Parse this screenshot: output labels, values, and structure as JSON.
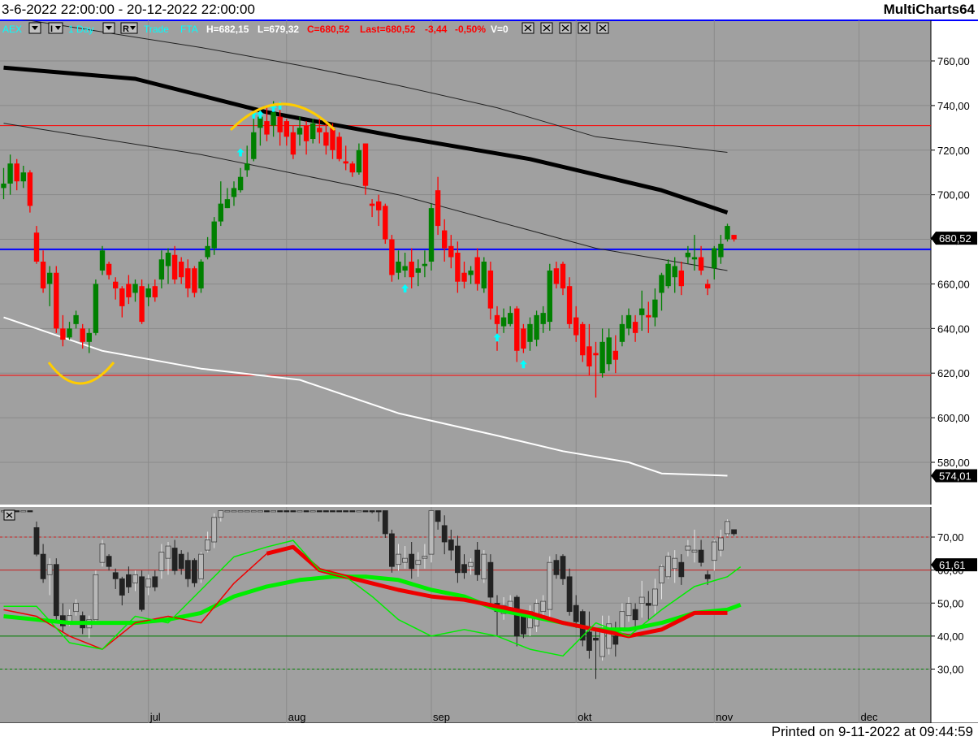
{
  "header": {
    "range": "3-6-2022 22:00:00 - 20-12-2022 22:00:00",
    "app": "MultiCharts64"
  },
  "toolbar": {
    "symbol": "AEX",
    "interval": "1 Day",
    "mode_btn": "R",
    "i_btn": "I",
    "trade": "Trade",
    "fta": "FTA",
    "high": "H=682,15",
    "low": "L=679,32",
    "close": "C=680,52",
    "last": "Last=680,52",
    "change": "-3,44",
    "pct": "-0,50%",
    "volume": "V=0"
  },
  "footer": {
    "printed": "Printed on 9-11-2022 at 09:44:59"
  },
  "colors": {
    "bg": "#a0a0a0",
    "up": "#008000",
    "down": "#ff0000",
    "blue": "#0000ff",
    "marker": "#00ffff",
    "annot": "#ffcc00"
  },
  "chart_data": [
    {
      "type": "candlestick",
      "yticks": [
        580,
        600,
        620,
        640,
        660,
        680,
        700,
        720,
        740,
        760
      ],
      "ytick_labels": [
        "580,00",
        "600,00",
        "620,00",
        "640,00",
        "660,00",
        "680,00",
        "700,00",
        "720,00",
        "740,00",
        "760,00"
      ],
      "ylim": [
        570,
        789
      ],
      "price_label": "680,52",
      "ma_label": "574,01",
      "hlines": [
        {
          "value": 731,
          "color": "#ff0000"
        },
        {
          "value": 675.5,
          "color": "#0000ff"
        },
        {
          "value": 619,
          "color": "#ff0000"
        }
      ],
      "candles": [
        [
          703,
          712,
          698,
          705
        ],
        [
          705,
          718,
          700,
          714
        ],
        [
          714,
          716,
          702,
          706
        ],
        [
          706,
          713,
          703,
          710
        ],
        [
          710,
          711,
          692,
          695
        ],
        [
          683,
          686,
          669,
          670
        ],
        [
          670,
          675,
          656,
          658
        ],
        [
          660,
          668,
          650,
          665
        ],
        [
          665,
          668,
          638,
          640
        ],
        [
          640,
          646,
          632,
          635
        ],
        [
          636,
          643,
          635,
          640
        ],
        [
          642,
          648,
          640,
          646
        ],
        [
          640,
          642,
          631,
          634
        ],
        [
          634,
          640,
          629,
          638
        ],
        [
          638,
          662,
          637,
          660
        ],
        [
          666,
          677,
          664,
          675
        ],
        [
          669,
          670,
          662,
          664
        ],
        [
          661,
          663,
          653,
          658
        ],
        [
          658,
          659,
          645,
          650
        ],
        [
          660,
          664,
          651,
          654
        ],
        [
          656,
          662,
          652,
          660
        ],
        [
          659,
          662,
          642,
          643
        ],
        [
          654,
          660,
          650,
          658
        ],
        [
          659,
          662,
          652,
          654
        ],
        [
          662,
          675,
          658,
          671
        ],
        [
          668,
          676,
          660,
          674
        ],
        [
          673,
          677,
          660,
          662
        ],
        [
          670,
          672,
          660,
          663
        ],
        [
          667,
          671,
          654,
          658
        ],
        [
          667,
          668,
          654,
          656
        ],
        [
          658,
          671,
          656,
          670
        ],
        [
          672,
          681,
          671,
          677
        ],
        [
          676,
          690,
          673,
          688
        ],
        [
          688,
          706,
          686,
          696
        ],
        [
          694,
          703,
          694,
          698
        ],
        [
          699,
          706,
          695,
          703
        ],
        [
          702,
          712,
          701,
          708
        ],
        [
          711,
          722,
          708,
          714
        ],
        [
          716,
          734,
          715,
          728
        ],
        [
          730,
          737,
          722,
          735
        ],
        [
          733,
          740,
          724,
          727
        ],
        [
          731,
          742,
          726,
          737
        ],
        [
          735,
          738,
          722,
          728
        ],
        [
          733,
          734,
          722,
          726
        ],
        [
          728,
          731,
          716,
          718
        ],
        [
          727,
          735,
          722,
          730
        ],
        [
          731,
          733,
          718,
          724
        ],
        [
          725,
          734,
          723,
          732
        ],
        [
          730,
          734,
          723,
          728
        ],
        [
          728,
          733,
          718,
          722
        ],
        [
          730,
          732,
          716,
          720
        ],
        [
          726,
          728,
          715,
          716
        ],
        [
          715,
          722,
          711,
          714
        ],
        [
          714,
          715,
          708,
          710
        ],
        [
          710,
          723,
          709,
          720
        ],
        [
          723,
          723,
          700,
          704
        ],
        [
          696,
          698,
          690,
          695
        ],
        [
          697,
          700,
          686,
          693
        ],
        [
          695,
          696,
          678,
          680
        ],
        [
          680,
          682,
          661,
          664
        ],
        [
          665,
          675,
          662,
          670
        ],
        [
          666,
          674,
          663,
          668
        ],
        [
          670,
          676,
          658,
          663
        ],
        [
          665,
          671,
          659,
          667
        ],
        [
          668,
          675,
          663,
          669
        ],
        [
          670,
          696,
          666,
          694
        ],
        [
          702,
          708,
          682,
          686
        ],
        [
          684,
          689,
          670,
          676
        ],
        [
          677,
          682,
          667,
          672
        ],
        [
          674,
          679,
          656,
          661
        ],
        [
          665,
          670,
          658,
          661
        ],
        [
          664,
          668,
          660,
          666
        ],
        [
          672,
          676,
          657,
          660
        ],
        [
          658,
          672,
          656,
          670
        ],
        [
          666,
          670,
          644,
          649
        ],
        [
          646,
          650,
          630,
          642
        ],
        [
          641,
          649,
          638,
          645
        ],
        [
          642,
          650,
          641,
          647
        ],
        [
          649,
          650,
          625,
          630
        ],
        [
          640,
          642,
          629,
          631
        ],
        [
          634,
          645,
          630,
          642
        ],
        [
          635,
          648,
          632,
          646
        ],
        [
          642,
          650,
          638,
          647
        ],
        [
          643,
          669,
          639,
          666
        ],
        [
          667,
          670,
          658,
          660
        ],
        [
          669,
          670,
          655,
          658
        ],
        [
          659,
          663,
          640,
          642
        ],
        [
          645,
          650,
          634,
          637
        ],
        [
          642,
          643,
          625,
          628
        ],
        [
          632,
          642,
          619,
          623
        ],
        [
          629,
          634,
          609,
          628
        ],
        [
          620,
          640,
          618,
          634
        ],
        [
          624,
          640,
          621,
          636
        ],
        [
          630,
          637,
          620,
          626
        ],
        [
          634,
          646,
          632,
          642
        ],
        [
          640,
          649,
          637,
          646
        ],
        [
          643,
          646,
          634,
          638
        ],
        [
          646,
          657,
          639,
          649
        ],
        [
          646,
          652,
          638,
          645
        ],
        [
          645,
          658,
          641,
          653
        ],
        [
          656,
          665,
          648,
          664
        ],
        [
          659,
          671,
          658,
          669
        ],
        [
          663,
          672,
          656,
          668
        ],
        [
          666,
          670,
          655,
          659
        ],
        [
          672,
          677,
          669,
          674
        ],
        [
          671,
          682,
          666,
          672
        ],
        [
          672,
          677,
          664,
          666
        ],
        [
          660,
          662,
          655,
          658
        ],
        [
          667,
          677,
          662,
          676
        ],
        [
          672,
          682,
          669,
          678
        ],
        [
          680,
          687,
          679,
          686
        ],
        [
          682,
          682,
          679,
          680
        ]
      ],
      "markers": [
        {
          "i": 36,
          "v": 719
        },
        {
          "i": 38,
          "v": 736
        },
        {
          "i": 39,
          "v": 736
        },
        {
          "i": 41,
          "v": 739
        },
        {
          "i": 42,
          "v": 740
        },
        {
          "i": 61,
          "v": 658
        },
        {
          "i": 75,
          "v": 636
        },
        {
          "i": 79,
          "v": 624
        }
      ],
      "ma_black_thick": [
        [
          0,
          757
        ],
        [
          20,
          752
        ],
        [
          40,
          737
        ],
        [
          60,
          726
        ],
        [
          80,
          716
        ],
        [
          100,
          702
        ],
        [
          110,
          692
        ]
      ],
      "ma_dark_upper": [
        [
          0,
          780
        ],
        [
          15,
          773
        ],
        [
          30,
          766
        ],
        [
          45,
          758
        ],
        [
          60,
          749
        ],
        [
          75,
          739
        ],
        [
          90,
          726
        ],
        [
          110,
          719
        ]
      ],
      "ma_dark_lower": [
        [
          0,
          732
        ],
        [
          15,
          725
        ],
        [
          30,
          718
        ],
        [
          45,
          709
        ],
        [
          60,
          700
        ],
        [
          75,
          688
        ],
        [
          90,
          676
        ],
        [
          110,
          666
        ]
      ],
      "ma_white": [
        [
          0,
          645
        ],
        [
          15,
          630
        ],
        [
          30,
          622
        ],
        [
          45,
          617
        ],
        [
          60,
          602
        ],
        [
          75,
          592
        ],
        [
          85,
          585
        ],
        [
          95,
          580
        ],
        [
          100,
          575
        ],
        [
          110,
          574
        ]
      ]
    },
    {
      "type": "oscillator",
      "yticks": [
        30,
        40,
        50,
        60,
        70
      ],
      "ytick_labels": [
        "30,00",
        "40,00",
        "50,00",
        "60,00",
        "70,00"
      ],
      "ylim": [
        20,
        80
      ],
      "value_label": "61,61",
      "hlines": [
        {
          "value": 70,
          "color": "#cc2222",
          "dash": true
        },
        {
          "value": 60,
          "color": "#cc2222",
          "dash": false
        },
        {
          "value": 40,
          "color": "#008000",
          "dash": false
        },
        {
          "value": 30,
          "color": "#008000",
          "dash": true
        }
      ],
      "x_labels": [
        {
          "label": "jul",
          "i": 22
        },
        {
          "label": "aug",
          "i": 43
        },
        {
          "label": "sep",
          "i": 65
        },
        {
          "label": "okt",
          "i": 87
        },
        {
          "label": "nov",
          "i": 108
        },
        {
          "label": "dec",
          "i": 130
        }
      ],
      "fast_green": [
        [
          0,
          49
        ],
        [
          5,
          49
        ],
        [
          10,
          38
        ],
        [
          15,
          36
        ],
        [
          20,
          46
        ],
        [
          25,
          44
        ],
        [
          30,
          54
        ],
        [
          35,
          64
        ],
        [
          40,
          67
        ],
        [
          44,
          69
        ],
        [
          48,
          60
        ],
        [
          52,
          58
        ],
        [
          56,
          52
        ],
        [
          60,
          45
        ],
        [
          65,
          40
        ],
        [
          70,
          42
        ],
        [
          75,
          40
        ],
        [
          80,
          36
        ],
        [
          85,
          34
        ],
        [
          90,
          44
        ],
        [
          95,
          40
        ],
        [
          100,
          48
        ],
        [
          105,
          55
        ],
        [
          110,
          58
        ],
        [
          112,
          61
        ]
      ],
      "slow_green": [
        [
          0,
          46
        ],
        [
          10,
          44
        ],
        [
          20,
          44
        ],
        [
          25,
          45
        ],
        [
          30,
          47
        ],
        [
          35,
          52
        ],
        [
          40,
          55
        ],
        [
          45,
          57
        ],
        [
          50,
          58
        ],
        [
          55,
          58
        ],
        [
          60,
          57
        ],
        [
          65,
          54
        ],
        [
          70,
          52
        ],
        [
          75,
          48
        ],
        [
          80,
          46
        ],
        [
          85,
          44
        ],
        [
          90,
          42
        ],
        [
          95,
          42
        ],
        [
          100,
          44
        ],
        [
          105,
          47
        ],
        [
          110,
          48
        ],
        [
          112,
          49.5
        ]
      ],
      "red_line": [
        [
          0,
          48
        ],
        [
          5,
          46
        ],
        [
          10,
          40
        ],
        [
          15,
          36
        ],
        [
          20,
          44
        ],
        [
          25,
          46
        ],
        [
          30,
          44
        ],
        [
          35,
          56
        ],
        [
          40,
          65
        ],
        [
          44,
          67
        ],
        [
          48,
          60
        ],
        [
          52,
          58
        ],
        [
          56,
          56
        ],
        [
          60,
          54
        ],
        [
          65,
          52
        ],
        [
          70,
          51
        ],
        [
          75,
          49
        ],
        [
          80,
          47
        ],
        [
          85,
          44
        ],
        [
          90,
          42
        ],
        [
          95,
          40
        ],
        [
          100,
          42
        ],
        [
          105,
          47
        ],
        [
          110,
          47
        ]
      ]
    }
  ]
}
